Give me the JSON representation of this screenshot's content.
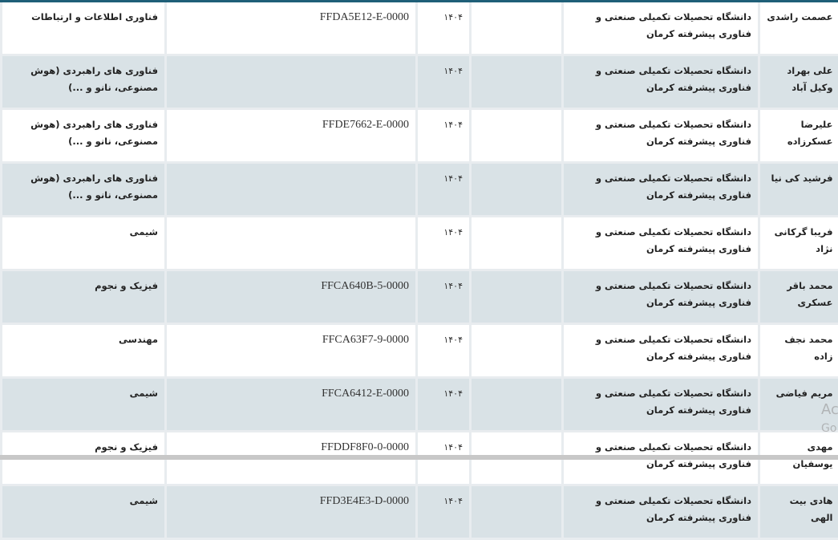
{
  "table": {
    "rows": [
      {
        "name": "عصمت راشدی",
        "university": "دانشگاه تحصیلات تکمیلی صنعتی و فناوری پیشرفته کرمان",
        "extra": "",
        "year": "۱۴۰۴",
        "code": "FFDA5E12-E-0000",
        "field": "فناوری اطلاعات و ارتباطات"
      },
      {
        "name": "علی بهراد وکیل آباد",
        "university": "دانشگاه تحصیلات تکمیلی صنعتی و فناوری پیشرفته کرمان",
        "extra": "",
        "year": "۱۴۰۴",
        "code": "",
        "field": "فناوری های راهبردی (هوش مصنوعی، نانو و ...)"
      },
      {
        "name": "علیرضا عسکرزاده",
        "university": "دانشگاه تحصیلات تکمیلی صنعتی و فناوری پیشرفته کرمان",
        "extra": "",
        "year": "۱۴۰۴",
        "code": "FFDE7662-E-0000",
        "field": "فناوری های راهبردی (هوش مصنوعی، نانو و ...)"
      },
      {
        "name": "فرشید کی نیا",
        "university": "دانشگاه تحصیلات تکمیلی صنعتی و فناوری پیشرفته کرمان",
        "extra": "",
        "year": "۱۴۰۴",
        "code": "",
        "field": "فناوری های راهبردی (هوش مصنوعی، نانو و ...)"
      },
      {
        "name": "فریبا گرکانی نژاد",
        "university": "دانشگاه تحصیلات تکمیلی صنعتی و فناوری پیشرفته کرمان",
        "extra": "",
        "year": "۱۴۰۴",
        "code": "",
        "field": "شیمی"
      },
      {
        "name": "محمد باقر عسکری",
        "university": "دانشگاه تحصیلات تکمیلی صنعتی و فناوری پیشرفته کرمان",
        "extra": "",
        "year": "۱۴۰۴",
        "code": "FFCA640B-5-0000",
        "field": "فیزیک و نجوم"
      },
      {
        "name": "محمد نجف زاده",
        "university": "دانشگاه تحصیلات تکمیلی صنعتی و فناوری پیشرفته کرمان",
        "extra": "",
        "year": "۱۴۰۴",
        "code": "FFCA63F7-9-0000",
        "field": "مهندسی"
      },
      {
        "name": "مریم فیاضی",
        "university": "دانشگاه تحصیلات تکمیلی صنعتی و فناوری پیشرفته کرمان",
        "extra": "",
        "year": "۱۴۰۴",
        "code": "FFCA6412-E-0000",
        "field": "شیمی"
      },
      {
        "name": "مهدی یوسفیان",
        "university": "دانشگاه تحصیلات تکمیلی صنعتی و فناوری پیشرفته کرمان",
        "extra": "",
        "year": "۱۴۰۴",
        "code": "FFDDF8F0-0-0000",
        "field": "فیزیک و نجوم"
      },
      {
        "name": "هادی بیت الهی",
        "university": "دانشگاه تحصیلات تکمیلی صنعتی و فناوری پیشرفته کرمان",
        "extra": "",
        "year": "۱۴۰۴",
        "code": "FFD3E4E3-D-0000",
        "field": "شیمی"
      }
    ]
  },
  "watermark": {
    "line1": "Ac",
    "line2": "Go"
  },
  "colors": {
    "header_border": "#1f5f78",
    "row_alt": "#d9e2e6"
  }
}
